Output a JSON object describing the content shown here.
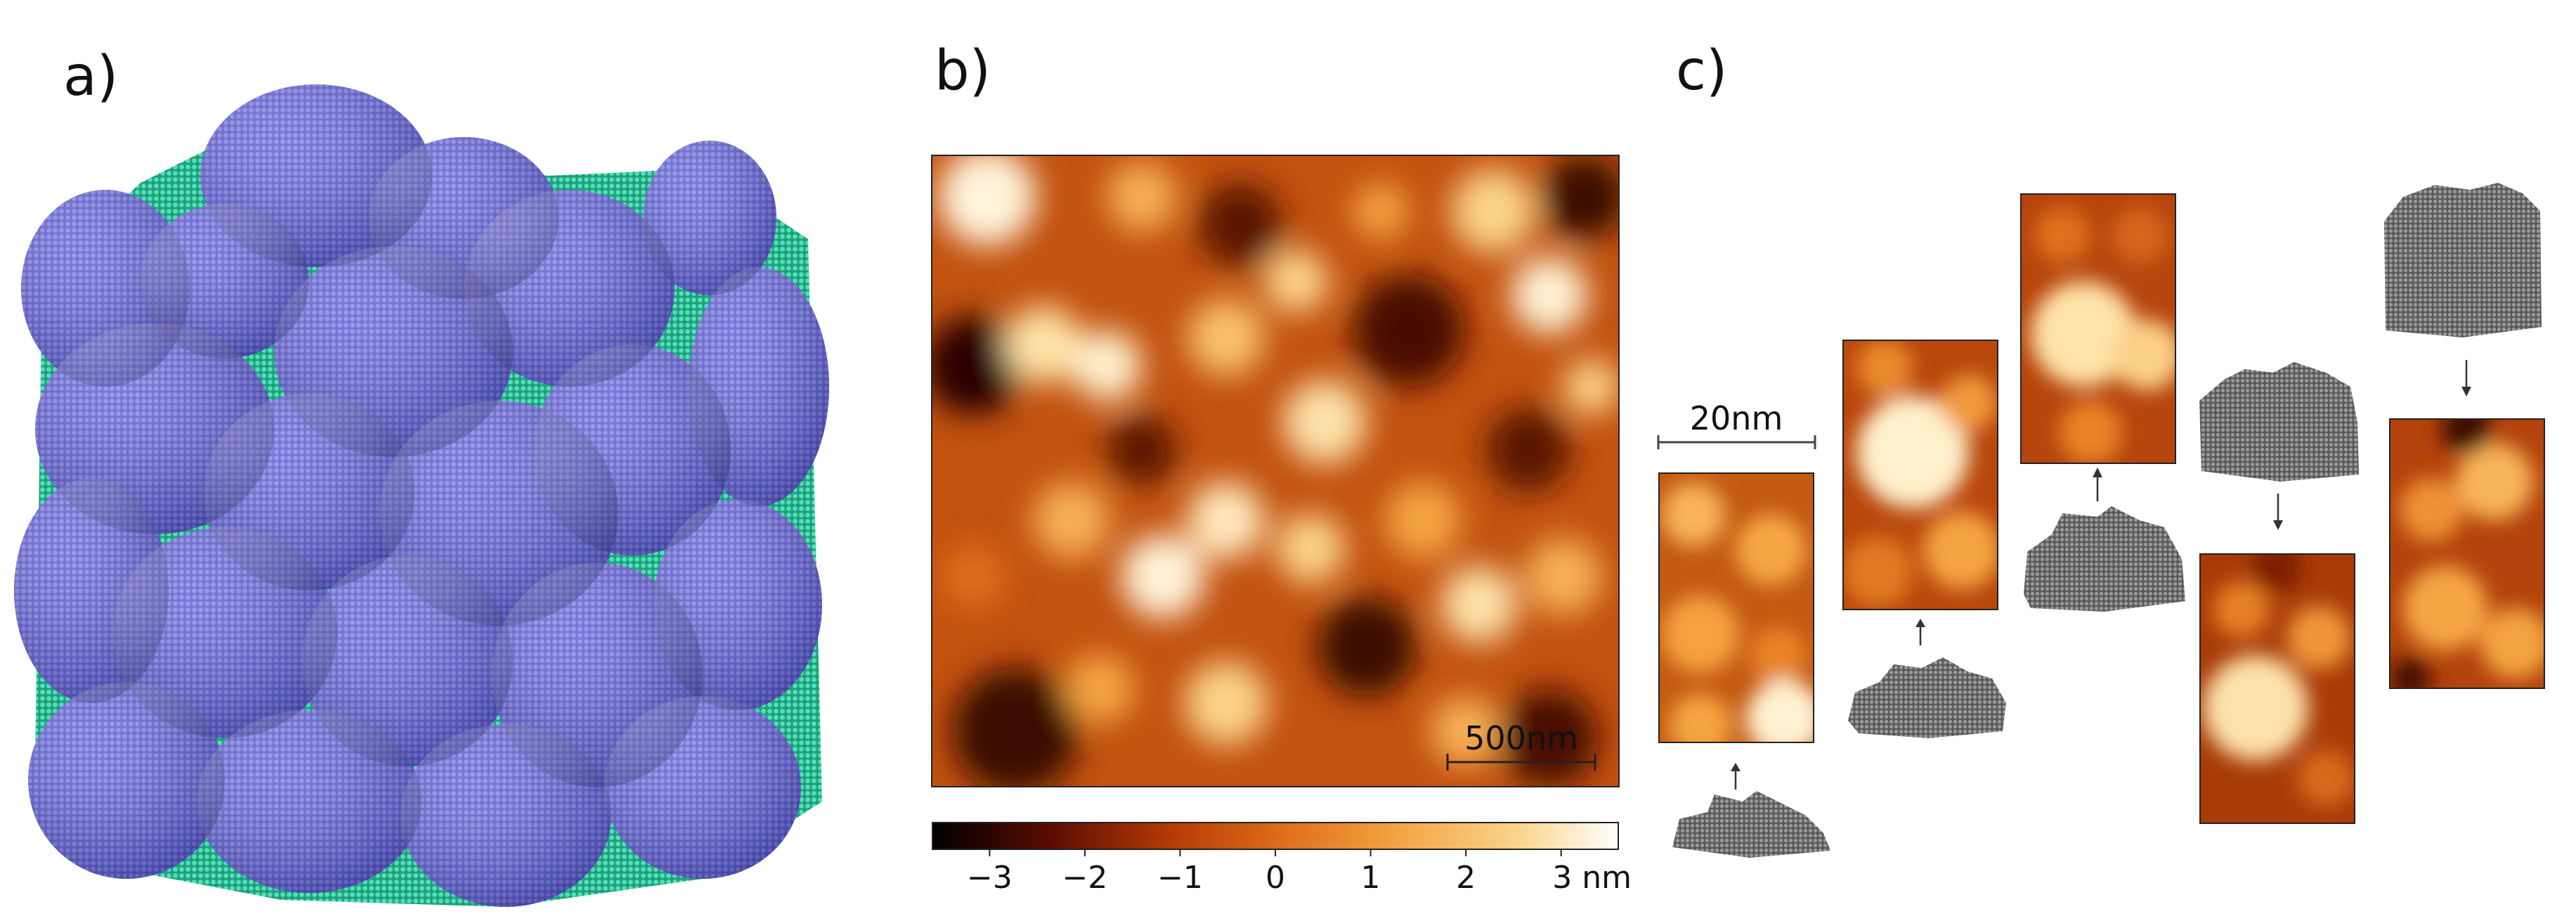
{
  "figure": {
    "panel_a": {
      "label": "a)"
    },
    "panel_b": {
      "label": "b)",
      "scale_bar": "500nm",
      "colorbar": {
        "ticks": [
          "−3",
          "−2",
          "−1",
          "0",
          "1",
          "2",
          "3 nm"
        ],
        "tick_values": [
          -3,
          -2,
          -1,
          0,
          1,
          2,
          3
        ],
        "range": [
          -3.6,
          3.6
        ],
        "colormap": [
          "#000000",
          "#5a0c00",
          "#b53b05",
          "#e0701c",
          "#f4a443",
          "#fbd38a",
          "#ffffff"
        ]
      }
    },
    "panel_c": {
      "label": "c)",
      "scale_bar": "20nm"
    },
    "colors": {
      "grain_blue": "#6a6ad8",
      "grain_blue_dark": "#3f3fa8",
      "boundary_green": "#2fc9a0",
      "render_gray": "#6e6e6e"
    }
  }
}
